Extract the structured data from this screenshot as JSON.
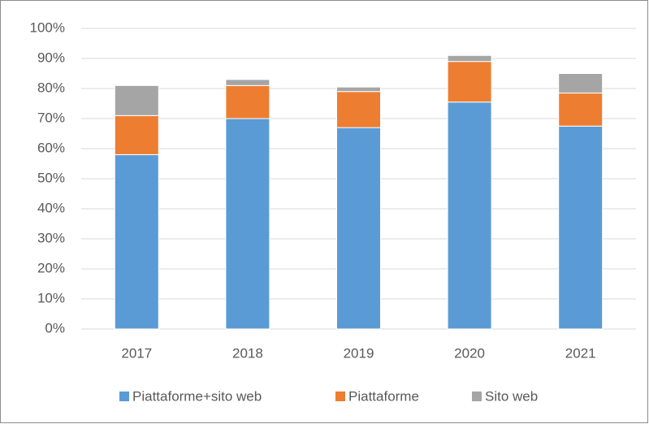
{
  "chart_data": {
    "type": "stacked_bar",
    "categories": [
      "2017",
      "2018",
      "2019",
      "2020",
      "2021"
    ],
    "series": [
      {
        "name": "Piattaforme+sito web",
        "color": "#5b9bd5",
        "values": [
          58,
          70,
          67,
          75.5,
          67.5
        ]
      },
      {
        "name": "Piattaforme",
        "color": "#ed7d31",
        "values": [
          13,
          11,
          12,
          13.5,
          11
        ]
      },
      {
        "name": "Sito web",
        "color": "#a5a5a5",
        "values": [
          10,
          2,
          1.5,
          2,
          6.5
        ]
      }
    ],
    "ylim": [
      0,
      100
    ],
    "yticks": [
      {
        "value": 0,
        "label": "0%"
      },
      {
        "value": 10,
        "label": "10%"
      },
      {
        "value": 20,
        "label": "20%"
      },
      {
        "value": 30,
        "label": "30%"
      },
      {
        "value": 40,
        "label": "40%"
      },
      {
        "value": 50,
        "label": "50%"
      },
      {
        "value": 60,
        "label": "60%"
      },
      {
        "value": 70,
        "label": "70%"
      },
      {
        "value": 80,
        "label": "80%"
      },
      {
        "value": 90,
        "label": "90%"
      },
      {
        "value": 100,
        "label": "100%"
      }
    ],
    "grid": true,
    "legend": "bottom"
  }
}
